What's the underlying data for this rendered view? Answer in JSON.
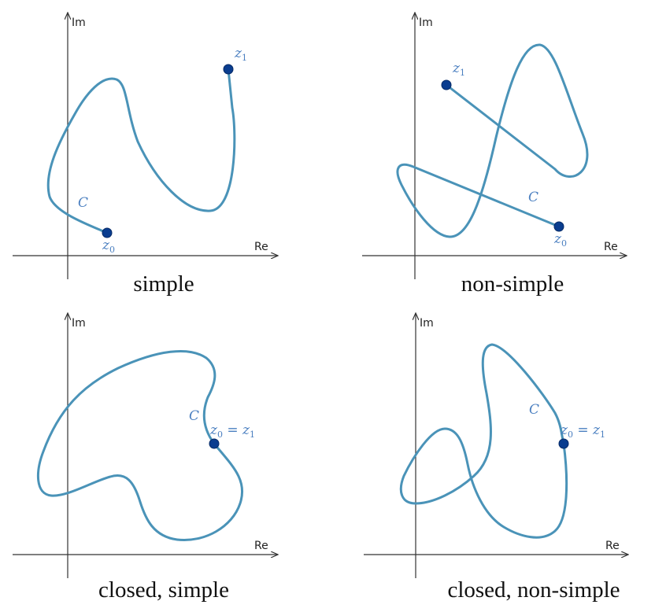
{
  "panels": [
    {
      "caption": "simple",
      "axis_re": "Re",
      "axis_im": "Im",
      "curve_label": "C",
      "z0_label": "0",
      "z1_label": "1"
    },
    {
      "caption": "non-simple",
      "axis_re": "Re",
      "axis_im": "Im",
      "curve_label": "C",
      "z0_label": "0",
      "z1_label": "1"
    },
    {
      "caption": "closed, simple",
      "axis_re": "Re",
      "axis_im": "Im",
      "curve_label": "C",
      "point_label_a": "0",
      "point_label_eq": " = z",
      "point_label_b": "1"
    },
    {
      "caption": "closed, non-simple",
      "axis_re": "Re",
      "axis_im": "Im",
      "curve_label": "C",
      "point_label_a": "0",
      "point_label_eq": " = z",
      "point_label_b": "1"
    }
  ],
  "colors": {
    "curve": "#4a93b8",
    "point": "#0a3d8f",
    "label": "#4a7fc0"
  }
}
